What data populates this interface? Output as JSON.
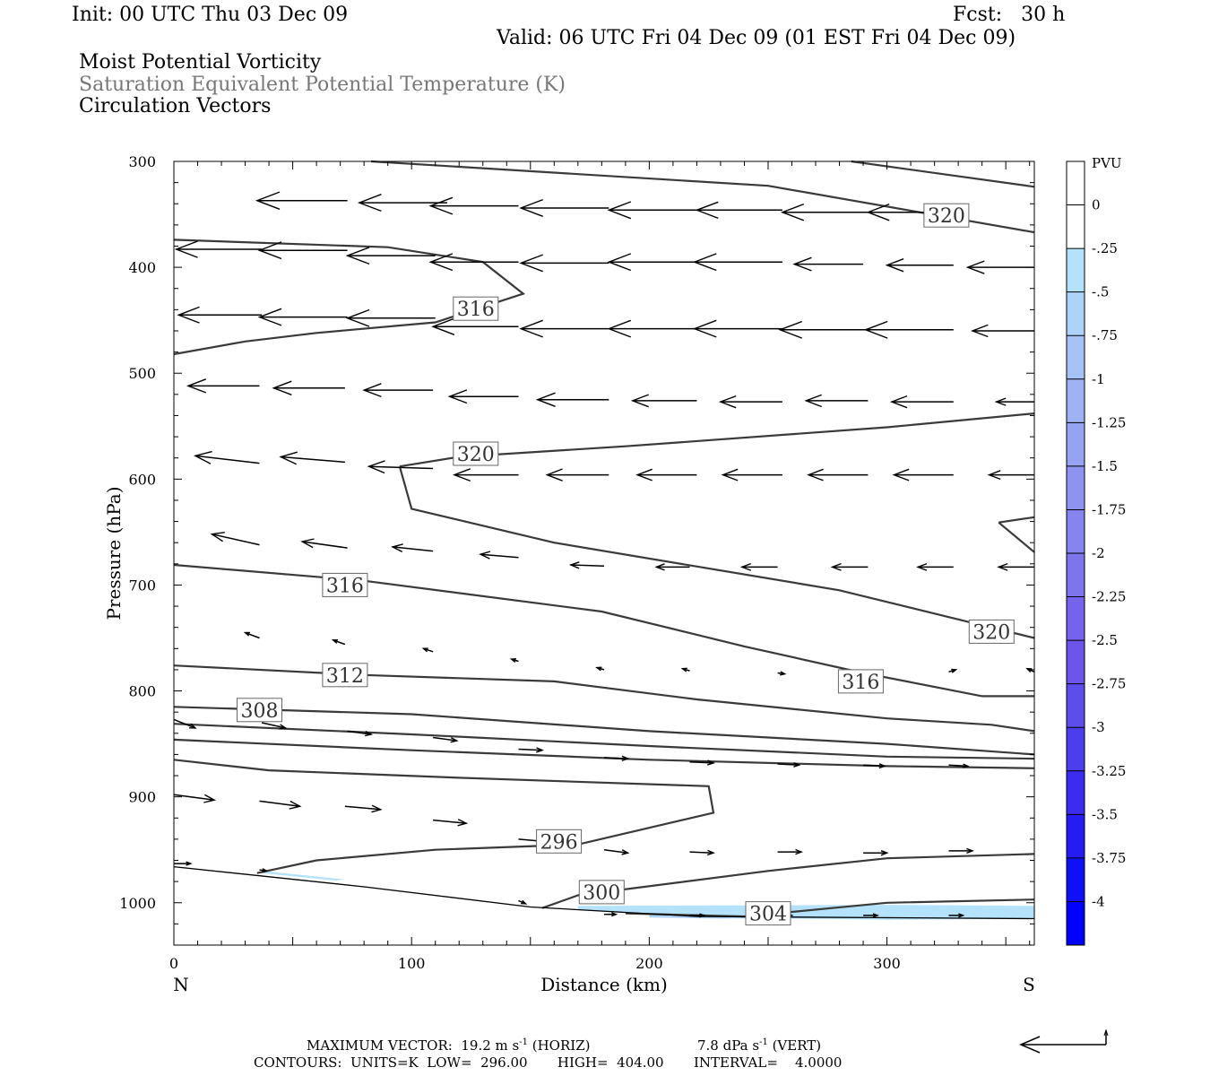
{
  "header": {
    "init": "Init: 00 UTC Thu 03 Dec 09",
    "fcst": "Fcst:   30 h",
    "valid": "Valid: 06 UTC Fri 04 Dec 09 (01 EST Fri 04 Dec 09)",
    "field1": "Moist Potential Vorticity",
    "field2": "Saturation Equivalent Potential Temperature (K)",
    "field3": "Circulation Vectors"
  },
  "footer": {
    "max_prefix": "MAXIMUM VECTOR:  19.2 m s",
    "max_horiz": " (HORIZ)",
    "max_vert_prefix": "7.8 dPa s",
    "max_vert": " (VERT)",
    "exp": "-1",
    "contours": "CONTOURS:  UNITS=K  LOW=  296.00       HIGH=  404.00       INTERVAL=    4.0000"
  },
  "chart_data": {
    "type": "cross-section",
    "xlabel": "Distance (km)",
    "ylabel": "Pressure (hPa)",
    "xlim": [
      0,
      362
    ],
    "ylim": [
      1040,
      300
    ],
    "x_ticks": [
      0,
      100,
      200,
      300
    ],
    "y_ticks": [
      300,
      400,
      500,
      600,
      700,
      800,
      900,
      1000
    ],
    "end_labels": {
      "left": "N",
      "right": "S"
    },
    "colorbar": {
      "title": "PVU",
      "levels": [
        "0",
        "-.25",
        "-.5",
        "-.75",
        "-1",
        "-1.25",
        "-1.5",
        "-1.75",
        "-2",
        "-2.25",
        "-2.5",
        "-2.75",
        "-3",
        "-3.25",
        "-3.5",
        "-3.75",
        "-4"
      ],
      "colors": [
        "#ffffff",
        "#ffffff",
        "#b4e2fa",
        "#aed2f8",
        "#a6c2f6",
        "#9eb2f4",
        "#96a3f2",
        "#8e93f0",
        "#8684ef",
        "#7e74ed",
        "#7564eb",
        "#6d55e9",
        "#5d4dea",
        "#4c3ded",
        "#3a2cf0",
        "#271bf4",
        "#1010f8",
        "#0000ff"
      ]
    },
    "contour_labels": [
      {
        "text": "320",
        "x": 325,
        "y": 351
      },
      {
        "text": "316",
        "x": 127,
        "y": 439
      },
      {
        "text": "320",
        "x": 127,
        "y": 576
      },
      {
        "text": "316",
        "x": 72,
        "y": 700
      },
      {
        "text": "320",
        "x": 344,
        "y": 744
      },
      {
        "text": "312",
        "x": 72,
        "y": 785
      },
      {
        "text": "316",
        "x": 289,
        "y": 791
      },
      {
        "text": "308",
        "x": 36,
        "y": 818
      },
      {
        "text": "296",
        "x": 162,
        "y": 942
      },
      {
        "text": "300",
        "x": 180,
        "y": 990
      },
      {
        "text": "304",
        "x": 250,
        "y": 1010
      }
    ],
    "contours": [
      {
        "points": [
          [
            83,
            300
          ],
          [
            250,
            323
          ],
          [
            362,
            367
          ]
        ]
      },
      {
        "points": [
          [
            285,
            300
          ],
          [
            362,
            324
          ]
        ]
      },
      {
        "points": [
          [
            0,
            374
          ],
          [
            90,
            381
          ],
          [
            130,
            395
          ],
          [
            147,
            425
          ],
          [
            110,
            452
          ],
          [
            60,
            462
          ],
          [
            30,
            470
          ],
          [
            0,
            482
          ]
        ]
      },
      {
        "points": [
          [
            95,
            588
          ],
          [
            120,
            579
          ],
          [
            190,
            569
          ],
          [
            300,
            551
          ],
          [
            362,
            538
          ]
        ]
      },
      {
        "points": [
          [
            95,
            588
          ],
          [
            100,
            628
          ],
          [
            160,
            660
          ],
          [
            280,
            705
          ],
          [
            340,
            738
          ],
          [
            362,
            750
          ]
        ]
      },
      {
        "points": [
          [
            347,
            641
          ],
          [
            362,
            636
          ]
        ]
      },
      {
        "points": [
          [
            347,
            641
          ],
          [
            362,
            669
          ]
        ]
      },
      {
        "points": [
          [
            0,
            681
          ],
          [
            80,
            696
          ],
          [
            180,
            725
          ],
          [
            240,
            758
          ],
          [
            290,
            783
          ],
          [
            340,
            805
          ],
          [
            362,
            805
          ]
        ]
      },
      {
        "points": [
          [
            0,
            776
          ],
          [
            80,
            785
          ],
          [
            160,
            791
          ],
          [
            220,
            808
          ],
          [
            300,
            826
          ],
          [
            344,
            832
          ],
          [
            362,
            838
          ]
        ]
      },
      {
        "points": [
          [
            0,
            815
          ],
          [
            100,
            822
          ],
          [
            200,
            838
          ],
          [
            300,
            850
          ],
          [
            362,
            860
          ]
        ]
      },
      {
        "points": [
          [
            0,
            831
          ],
          [
            100,
            841
          ],
          [
            200,
            852
          ],
          [
            300,
            862
          ],
          [
            362,
            864
          ]
        ]
      },
      {
        "points": [
          [
            0,
            846
          ],
          [
            100,
            856
          ],
          [
            200,
            865
          ],
          [
            300,
            871
          ],
          [
            362,
            873
          ]
        ]
      },
      {
        "points": [
          [
            0,
            865
          ],
          [
            40,
            875
          ],
          [
            120,
            882
          ],
          [
            225,
            890
          ],
          [
            227,
            915
          ],
          [
            170,
            945
          ],
          [
            110,
            950
          ],
          [
            60,
            960
          ],
          [
            35,
            972
          ]
        ]
      },
      {
        "points": [
          [
            155,
            1005
          ],
          [
            170,
            993
          ],
          [
            250,
            970
          ],
          [
            300,
            958
          ],
          [
            362,
            954
          ]
        ]
      },
      {
        "points": [
          [
            190,
            1010
          ],
          [
            240,
            1013
          ],
          [
            300,
            1000
          ],
          [
            362,
            997
          ]
        ]
      }
    ],
    "ground": [
      [
        0,
        966
      ],
      [
        80,
        985
      ],
      [
        150,
        1004
      ],
      [
        220,
        1013
      ],
      [
        362,
        1015
      ]
    ],
    "shaded": [
      {
        "color": "#b4e2fa",
        "points": [
          [
            170,
            1003
          ],
          [
            300,
            1002
          ],
          [
            362,
            1003
          ],
          [
            362,
            1015
          ],
          [
            300,
            1016
          ],
          [
            220,
            1014
          ],
          [
            170,
            1007
          ]
        ]
      },
      {
        "color": "#aed2f8",
        "points": [
          [
            200,
            1011
          ],
          [
            260,
            1012
          ],
          [
            280,
            1014
          ],
          [
            230,
            1015
          ],
          [
            200,
            1014
          ]
        ]
      },
      {
        "color": "#b4e2fa",
        "points": [
          [
            37,
            970
          ],
          [
            72,
            978
          ],
          [
            68,
            979
          ],
          [
            37,
            972
          ]
        ]
      }
    ],
    "vectors": [
      {
        "x": 73,
        "y": 337,
        "u": -38,
        "v": 0
      },
      {
        "x": 115,
        "y": 339,
        "u": -37,
        "v": 0
      },
      {
        "x": 145,
        "y": 342,
        "u": -37,
        "v": 0
      },
      {
        "x": 183,
        "y": 344,
        "u": -37,
        "v": 0
      },
      {
        "x": 220,
        "y": 346,
        "u": -37,
        "v": 0
      },
      {
        "x": 256,
        "y": 346,
        "u": -36,
        "v": 0
      },
      {
        "x": 292,
        "y": 348,
        "u": -36,
        "v": 0
      },
      {
        "x": 328,
        "y": 348,
        "u": -36,
        "v": 0
      },
      {
        "x": 37,
        "y": 383,
        "u": -36,
        "v": 0
      },
      {
        "x": 73,
        "y": 384,
        "u": -37,
        "v": 0
      },
      {
        "x": 110,
        "y": 389,
        "u": -37,
        "v": 0
      },
      {
        "x": 145,
        "y": 395,
        "u": -37,
        "v": 0
      },
      {
        "x": 183,
        "y": 396,
        "u": -37,
        "v": 0
      },
      {
        "x": 220,
        "y": 395,
        "u": -37,
        "v": 0
      },
      {
        "x": 256,
        "y": 395,
        "u": -37,
        "v": 0
      },
      {
        "x": 290,
        "y": 397,
        "u": -29,
        "v": 0
      },
      {
        "x": 328,
        "y": 398,
        "u": -28,
        "v": 0
      },
      {
        "x": 362,
        "y": 400,
        "u": -28,
        "v": 0
      },
      {
        "x": 37,
        "y": 445,
        "u": -35,
        "v": 0
      },
      {
        "x": 73,
        "y": 447,
        "u": -37,
        "v": 0
      },
      {
        "x": 110,
        "y": 448,
        "u": -37,
        "v": 0
      },
      {
        "x": 145,
        "y": 456,
        "u": -36,
        "v": 0
      },
      {
        "x": 183,
        "y": 458,
        "u": -37,
        "v": 0
      },
      {
        "x": 220,
        "y": 458,
        "u": -37,
        "v": 0
      },
      {
        "x": 256,
        "y": 458,
        "u": -37,
        "v": 0
      },
      {
        "x": 292,
        "y": 459,
        "u": -37,
        "v": 0
      },
      {
        "x": 328,
        "y": 459,
        "u": -37,
        "v": 0
      },
      {
        "x": 362,
        "y": 460,
        "u": -26,
        "v": 0
      },
      {
        "x": 36,
        "y": 512,
        "u": -30,
        "v": 0
      },
      {
        "x": 72,
        "y": 514,
        "u": -30,
        "v": 0
      },
      {
        "x": 109,
        "y": 516,
        "u": -29,
        "v": 0
      },
      {
        "x": 145,
        "y": 522,
        "u": -29,
        "v": 0
      },
      {
        "x": 183,
        "y": 525,
        "u": -30,
        "v": 0
      },
      {
        "x": 220,
        "y": 526,
        "u": -27,
        "v": 0
      },
      {
        "x": 256,
        "y": 527,
        "u": -26,
        "v": 0
      },
      {
        "x": 292,
        "y": 526,
        "u": -26,
        "v": 0
      },
      {
        "x": 328,
        "y": 527,
        "u": -26,
        "v": 0
      },
      {
        "x": 362,
        "y": 527,
        "u": -16,
        "v": 0
      },
      {
        "x": 36,
        "y": 585,
        "u": -27,
        "v": -7
      },
      {
        "x": 72,
        "y": 584,
        "u": -27,
        "v": -5
      },
      {
        "x": 109,
        "y": 590,
        "u": -27,
        "v": -2
      },
      {
        "x": 145,
        "y": 596,
        "u": -27,
        "v": 0
      },
      {
        "x": 183,
        "y": 596,
        "u": -26,
        "v": 0
      },
      {
        "x": 220,
        "y": 596,
        "u": -25,
        "v": 0
      },
      {
        "x": 256,
        "y": 596,
        "u": -25,
        "v": 0
      },
      {
        "x": 292,
        "y": 596,
        "u": -25,
        "v": 0
      },
      {
        "x": 328,
        "y": 596,
        "u": -25,
        "v": 0
      },
      {
        "x": 362,
        "y": 596,
        "u": -19,
        "v": 0
      },
      {
        "x": 36,
        "y": 662,
        "u": -20,
        "v": -10
      },
      {
        "x": 73,
        "y": 665,
        "u": -19,
        "v": -6
      },
      {
        "x": 109,
        "y": 668,
        "u": -17,
        "v": -4
      },
      {
        "x": 145,
        "y": 674,
        "u": -16,
        "v": -3
      },
      {
        "x": 181,
        "y": 682,
        "u": -14,
        "v": -1
      },
      {
        "x": 217,
        "y": 683,
        "u": -14,
        "v": 0
      },
      {
        "x": 254,
        "y": 683,
        "u": -15,
        "v": 0
      },
      {
        "x": 292,
        "y": 683,
        "u": -15,
        "v": 0
      },
      {
        "x": 328,
        "y": 683,
        "u": -15,
        "v": 0
      },
      {
        "x": 362,
        "y": 683,
        "u": -15,
        "v": 0
      },
      {
        "x": 36,
        "y": 750,
        "u": -6,
        "v": -5
      },
      {
        "x": 72,
        "y": 756,
        "u": -5,
        "v": -4
      },
      {
        "x": 109,
        "y": 763,
        "u": -4,
        "v": -3
      },
      {
        "x": 145,
        "y": 772,
        "u": -3,
        "v": -2
      },
      {
        "x": 181,
        "y": 780,
        "u": -3,
        "v": -2
      },
      {
        "x": 217,
        "y": 781,
        "u": -3,
        "v": -2
      },
      {
        "x": 254,
        "y": 783,
        "u": 3,
        "v": 1
      },
      {
        "x": 290,
        "y": 783,
        "u": 3,
        "v": -1
      },
      {
        "x": 326,
        "y": 782,
        "u": 3,
        "v": -2
      },
      {
        "x": 362,
        "y": 782,
        "u": -3,
        "v": -3
      },
      {
        "x": 0,
        "y": 827,
        "u": 9,
        "v": 8
      },
      {
        "x": 37,
        "y": 830,
        "u": 10,
        "v": 5
      },
      {
        "x": 73,
        "y": 838,
        "u": 10,
        "v": 3
      },
      {
        "x": 109,
        "y": 844,
        "u": 10,
        "v": 3
      },
      {
        "x": 145,
        "y": 855,
        "u": 10,
        "v": 1
      },
      {
        "x": 181,
        "y": 863,
        "u": 10,
        "v": 1
      },
      {
        "x": 217,
        "y": 867,
        "u": 10,
        "v": 1
      },
      {
        "x": 254,
        "y": 869,
        "u": 9,
        "v": 1
      },
      {
        "x": 290,
        "y": 870,
        "u": 9,
        "v": 1
      },
      {
        "x": 326,
        "y": 870,
        "u": 8,
        "v": 1
      },
      {
        "x": 0,
        "y": 898,
        "u": 17,
        "v": 5
      },
      {
        "x": 36,
        "y": 904,
        "u": 17,
        "v": 5
      },
      {
        "x": 72,
        "y": 909,
        "u": 15,
        "v": 3
      },
      {
        "x": 109,
        "y": 922,
        "u": 14,
        "v": 3
      },
      {
        "x": 145,
        "y": 940,
        "u": 15,
        "v": 3
      },
      {
        "x": 181,
        "y": 950,
        "u": 10,
        "v": 3
      },
      {
        "x": 217,
        "y": 952,
        "u": 10,
        "v": 1
      },
      {
        "x": 254,
        "y": 952,
        "u": 10,
        "v": 0
      },
      {
        "x": 290,
        "y": 953,
        "u": 10,
        "v": 0
      },
      {
        "x": 326,
        "y": 951,
        "u": 10,
        "v": 0
      },
      {
        "x": 0,
        "y": 963,
        "u": 7,
        "v": 0
      },
      {
        "x": 36,
        "y": 969,
        "u": 3,
        "v": 1
      },
      {
        "x": 145,
        "y": 998,
        "u": 3,
        "v": 3
      },
      {
        "x": 181,
        "y": 1011,
        "u": 5,
        "v": 0
      },
      {
        "x": 217,
        "y": 1012,
        "u": 6,
        "v": 0
      },
      {
        "x": 254,
        "y": 1012,
        "u": 6,
        "v": 0
      },
      {
        "x": 290,
        "y": 1012,
        "u": 6,
        "v": 0
      },
      {
        "x": 326,
        "y": 1012,
        "u": 6,
        "v": 0
      }
    ]
  }
}
